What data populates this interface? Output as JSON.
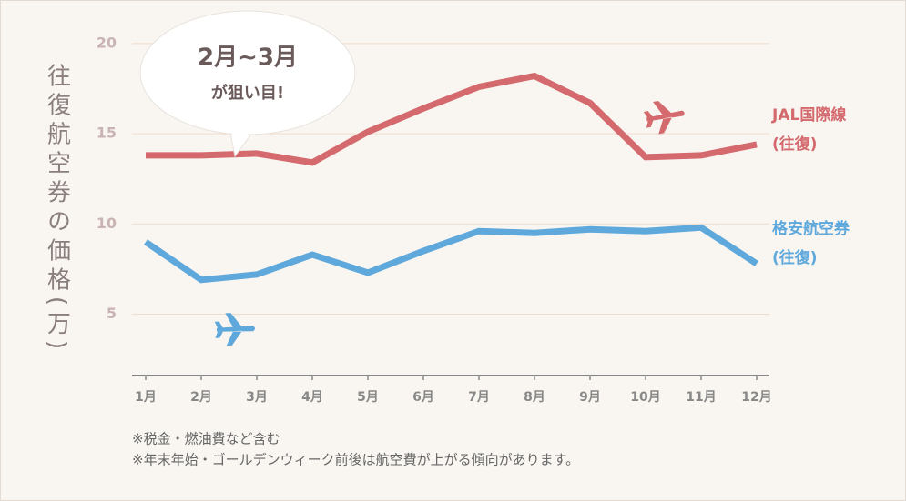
{
  "chart_data": {
    "type": "line",
    "y_axis_label": "往復航空券の価格(万)",
    "callout": {
      "line1": "2月~3月",
      "line2": "が狙い目!"
    },
    "categories": [
      "1月",
      "2月",
      "3月",
      "4月",
      "5月",
      "6月",
      "7月",
      "8月",
      "9月",
      "10月",
      "11月",
      "12月"
    ],
    "series": [
      {
        "name": "JAL国際線",
        "name_sub": "(往復)",
        "color": "#d46a6e",
        "values": [
          13.8,
          13.8,
          13.9,
          13.4,
          15.1,
          16.4,
          17.6,
          18.2,
          16.7,
          13.7,
          13.8,
          14.4
        ]
      },
      {
        "name": "格安航空券",
        "name_sub": "(往復)",
        "color": "#5fa8dc",
        "values": [
          9.0,
          6.9,
          7.2,
          8.3,
          7.3,
          8.5,
          9.6,
          9.5,
          9.7,
          9.6,
          9.8,
          7.8
        ]
      }
    ],
    "ylim": [
      1.6,
      21
    ],
    "yticks": [
      5,
      10,
      15,
      20
    ],
    "grid": true,
    "notes": [
      "※税金・燃油費など含む",
      "※年末年始・ゴールデンウィーク前後は航空費が上がる傾向があります。"
    ]
  }
}
